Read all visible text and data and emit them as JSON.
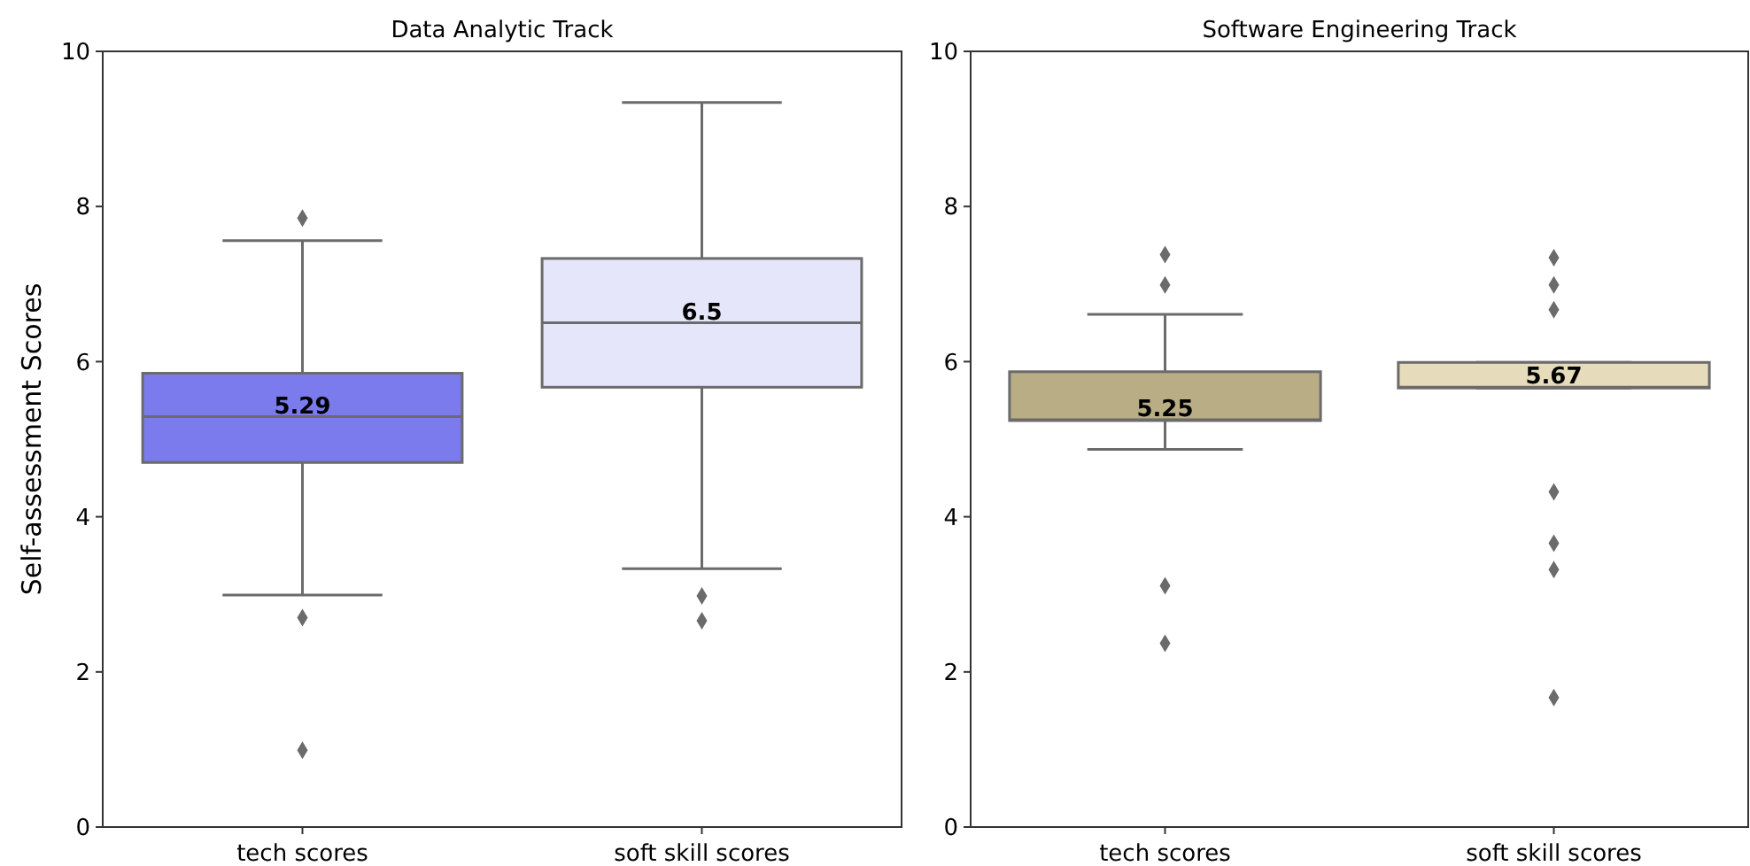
{
  "chart_data": [
    {
      "type": "box",
      "title": "Data Analytic Track",
      "ylabel": "Self-assessment Scores",
      "categories": [
        "tech scores",
        "soft skill scores"
      ],
      "colors": [
        "#7b7bee",
        "#e6e6fa"
      ],
      "ylim": [
        0,
        10
      ],
      "yticks": [
        0,
        2,
        4,
        6,
        8,
        10
      ],
      "marker": "diamond",
      "value_labels": [
        "5.29",
        "6.5"
      ],
      "boxes": [
        {
          "low": 2.99,
          "q1": 4.7,
          "median": 5.29,
          "q3": 5.85,
          "high": 7.56,
          "outliers": [
            7.85,
            2.7,
            0.99
          ]
        },
        {
          "low": 3.33,
          "q1": 5.67,
          "median": 6.5,
          "q3": 7.33,
          "high": 9.34,
          "outliers": [
            2.98,
            2.66
          ]
        }
      ]
    },
    {
      "type": "box",
      "title": "Software Engineering Track",
      "categories": [
        "tech scores",
        "soft skill scores"
      ],
      "colors": [
        "#b9ad86",
        "#e6dbbb"
      ],
      "ylim": [
        0,
        10
      ],
      "yticks": [
        0,
        2,
        4,
        6,
        8,
        10
      ],
      "marker": "diamond",
      "value_labels": [
        "5.25",
        "5.67"
      ],
      "boxes": [
        {
          "low": 4.87,
          "q1": 5.24,
          "median": 5.25,
          "q3": 5.87,
          "high": 6.61,
          "outliers": [
            7.38,
            6.99,
            3.11,
            2.37
          ]
        },
        {
          "low": 5.66,
          "q1": 5.66,
          "median": 5.67,
          "q3": 5.99,
          "high": 5.99,
          "outliers": [
            7.34,
            6.99,
            6.67,
            4.32,
            3.66,
            3.32,
            1.67
          ]
        }
      ]
    }
  ]
}
